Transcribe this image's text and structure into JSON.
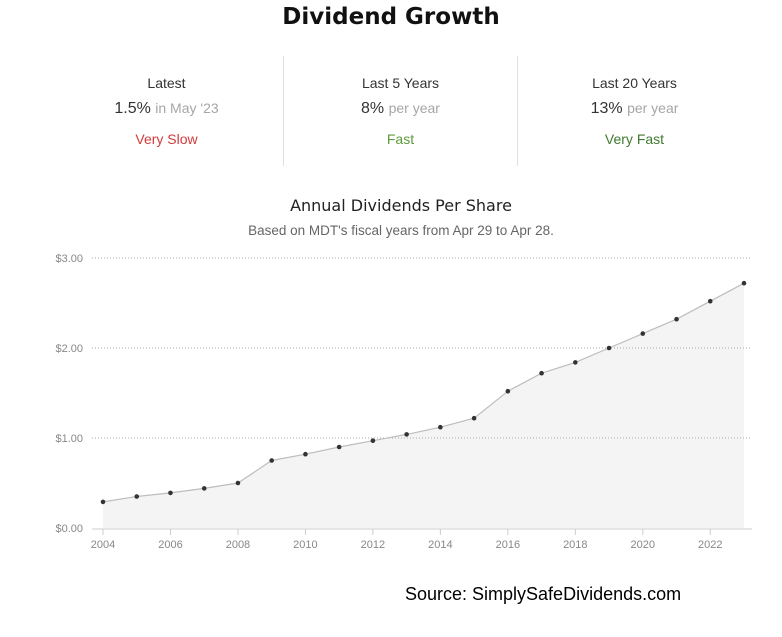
{
  "header": {
    "title": "Dividend Growth"
  },
  "stats": [
    {
      "label": "Latest",
      "value": "1.5%",
      "qualifier": "in May '23",
      "rating": "Very Slow",
      "rating_color": "#d33b3b"
    },
    {
      "label": "Last 5 Years",
      "value": "8%",
      "qualifier": "per year",
      "rating": "Fast",
      "rating_color": "#5c9b3a"
    },
    {
      "label": "Last 20 Years",
      "value": "13%",
      "qualifier": "per year",
      "rating": "Very Fast",
      "rating_color": "#3f7a2e"
    }
  ],
  "chart_data": {
    "type": "area",
    "title": "Annual Dividends Per Share",
    "subtitle": "Based on MDT's fiscal years from Apr 29 to Apr 28.",
    "xlabel": "",
    "ylabel": "",
    "x": [
      2004,
      2005,
      2006,
      2007,
      2008,
      2009,
      2010,
      2011,
      2012,
      2013,
      2014,
      2015,
      2016,
      2017,
      2018,
      2019,
      2020,
      2021,
      2022,
      2023
    ],
    "values": [
      0.29,
      0.35,
      0.39,
      0.44,
      0.5,
      0.75,
      0.82,
      0.9,
      0.97,
      1.04,
      1.12,
      1.22,
      1.52,
      1.72,
      1.84,
      2.0,
      2.16,
      2.32,
      2.52,
      2.72
    ],
    "ylim": [
      0,
      3
    ],
    "y_ticks": [
      "$0.00",
      "$1.00",
      "$2.00",
      "$3.00"
    ],
    "y_tick_values": [
      0,
      1,
      2,
      3
    ],
    "x_ticks": [
      "2004",
      "2006",
      "2008",
      "2010",
      "2012",
      "2014",
      "2016",
      "2018",
      "2020",
      "2022"
    ],
    "x_tick_values": [
      2004,
      2006,
      2008,
      2010,
      2012,
      2014,
      2016,
      2018,
      2020,
      2022
    ],
    "grid": true,
    "colors": {
      "area": "#f4f4f4",
      "line": "#bdbdbd",
      "point": "#333333",
      "grid": "#aaaaaa",
      "axis": "#cccccc",
      "tick_text": "#888888"
    }
  },
  "footer": {
    "source": "Source: SimplySafeDividends.com"
  }
}
